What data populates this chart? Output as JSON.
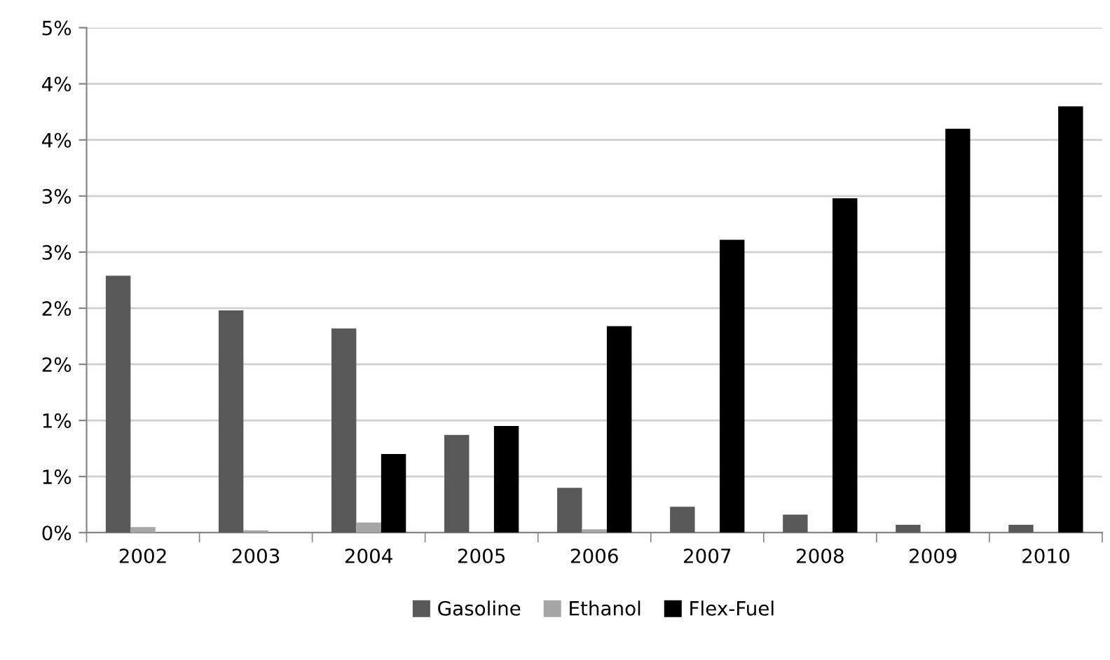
{
  "chart_data": {
    "type": "bar",
    "categories": [
      "2002",
      "2003",
      "2004",
      "2005",
      "2006",
      "2007",
      "2008",
      "2009",
      "2010"
    ],
    "series": [
      {
        "name": "Gasoline",
        "color": "#595959",
        "values": [
          2.29,
          1.98,
          1.82,
          0.87,
          0.4,
          0.23,
          0.16,
          0.07,
          0.07
        ]
      },
      {
        "name": "Ethanol",
        "color": "#a6a6a6",
        "values": [
          0.05,
          0.02,
          0.09,
          null,
          0.03,
          0,
          0,
          0,
          0
        ]
      },
      {
        "name": "Flex-Fuel",
        "color": "#000000",
        "values": [
          0,
          0,
          0.7,
          0.95,
          1.84,
          2.61,
          2.98,
          3.6,
          3.8
        ]
      }
    ],
    "ylim": [
      0,
      4.5
    ],
    "yticks": [
      {
        "value": 0,
        "label": "0%"
      },
      {
        "value": 0.5,
        "label": "1%"
      },
      {
        "value": 1,
        "label": "1%"
      },
      {
        "value": 1.5,
        "label": "2%"
      },
      {
        "value": 2,
        "label": "2%"
      },
      {
        "value": 2.5,
        "label": "3%"
      },
      {
        "value": 3,
        "label": "3%"
      },
      {
        "value": 3.5,
        "label": "4%"
      },
      {
        "value": 4,
        "label": "4%"
      },
      {
        "value": 4.5,
        "label": "5%"
      }
    ],
    "grid": "y",
    "legend": "bottom"
  }
}
